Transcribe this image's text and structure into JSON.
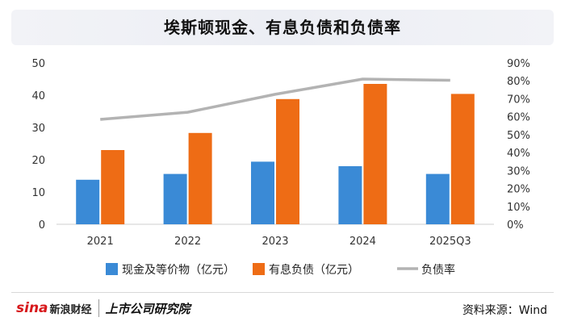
{
  "chart_data": {
    "type": "bar",
    "title": "埃斯顿现金、有息负债和负债率",
    "categories": [
      "2021",
      "2022",
      "2023",
      "2024",
      "2025Q3"
    ],
    "ylim": [
      0,
      50
    ],
    "yticks": [
      0,
      10,
      20,
      30,
      40,
      50
    ],
    "y2lim": [
      0,
      90
    ],
    "y2ticks": [
      "0%",
      "10%",
      "20%",
      "30%",
      "40%",
      "50%",
      "60%",
      "70%",
      "80%",
      "90%"
    ],
    "series": [
      {
        "name": "现金及等价物（亿元）",
        "type": "bar",
        "axis": "left",
        "color": "#3a8ad6",
        "values": [
          13.8,
          15.6,
          19.4,
          18.0,
          15.6
        ]
      },
      {
        "name": "有息负债（亿元）",
        "type": "bar",
        "axis": "left",
        "color": "#ee6c15",
        "values": [
          23.0,
          28.3,
          38.8,
          43.5,
          40.4
        ]
      },
      {
        "name": "负债率",
        "type": "line",
        "axis": "right",
        "color": "#b3b3b3",
        "values": [
          58.5,
          62.5,
          72.5,
          81.0,
          80.3
        ]
      }
    ],
    "grid": false,
    "legend_position": "bottom"
  },
  "footer": {
    "brand_sina": "sina",
    "brand_sina_cn": "新浪财经",
    "brand_2": "上市公司研究院",
    "source": "资料来源：Wind"
  }
}
